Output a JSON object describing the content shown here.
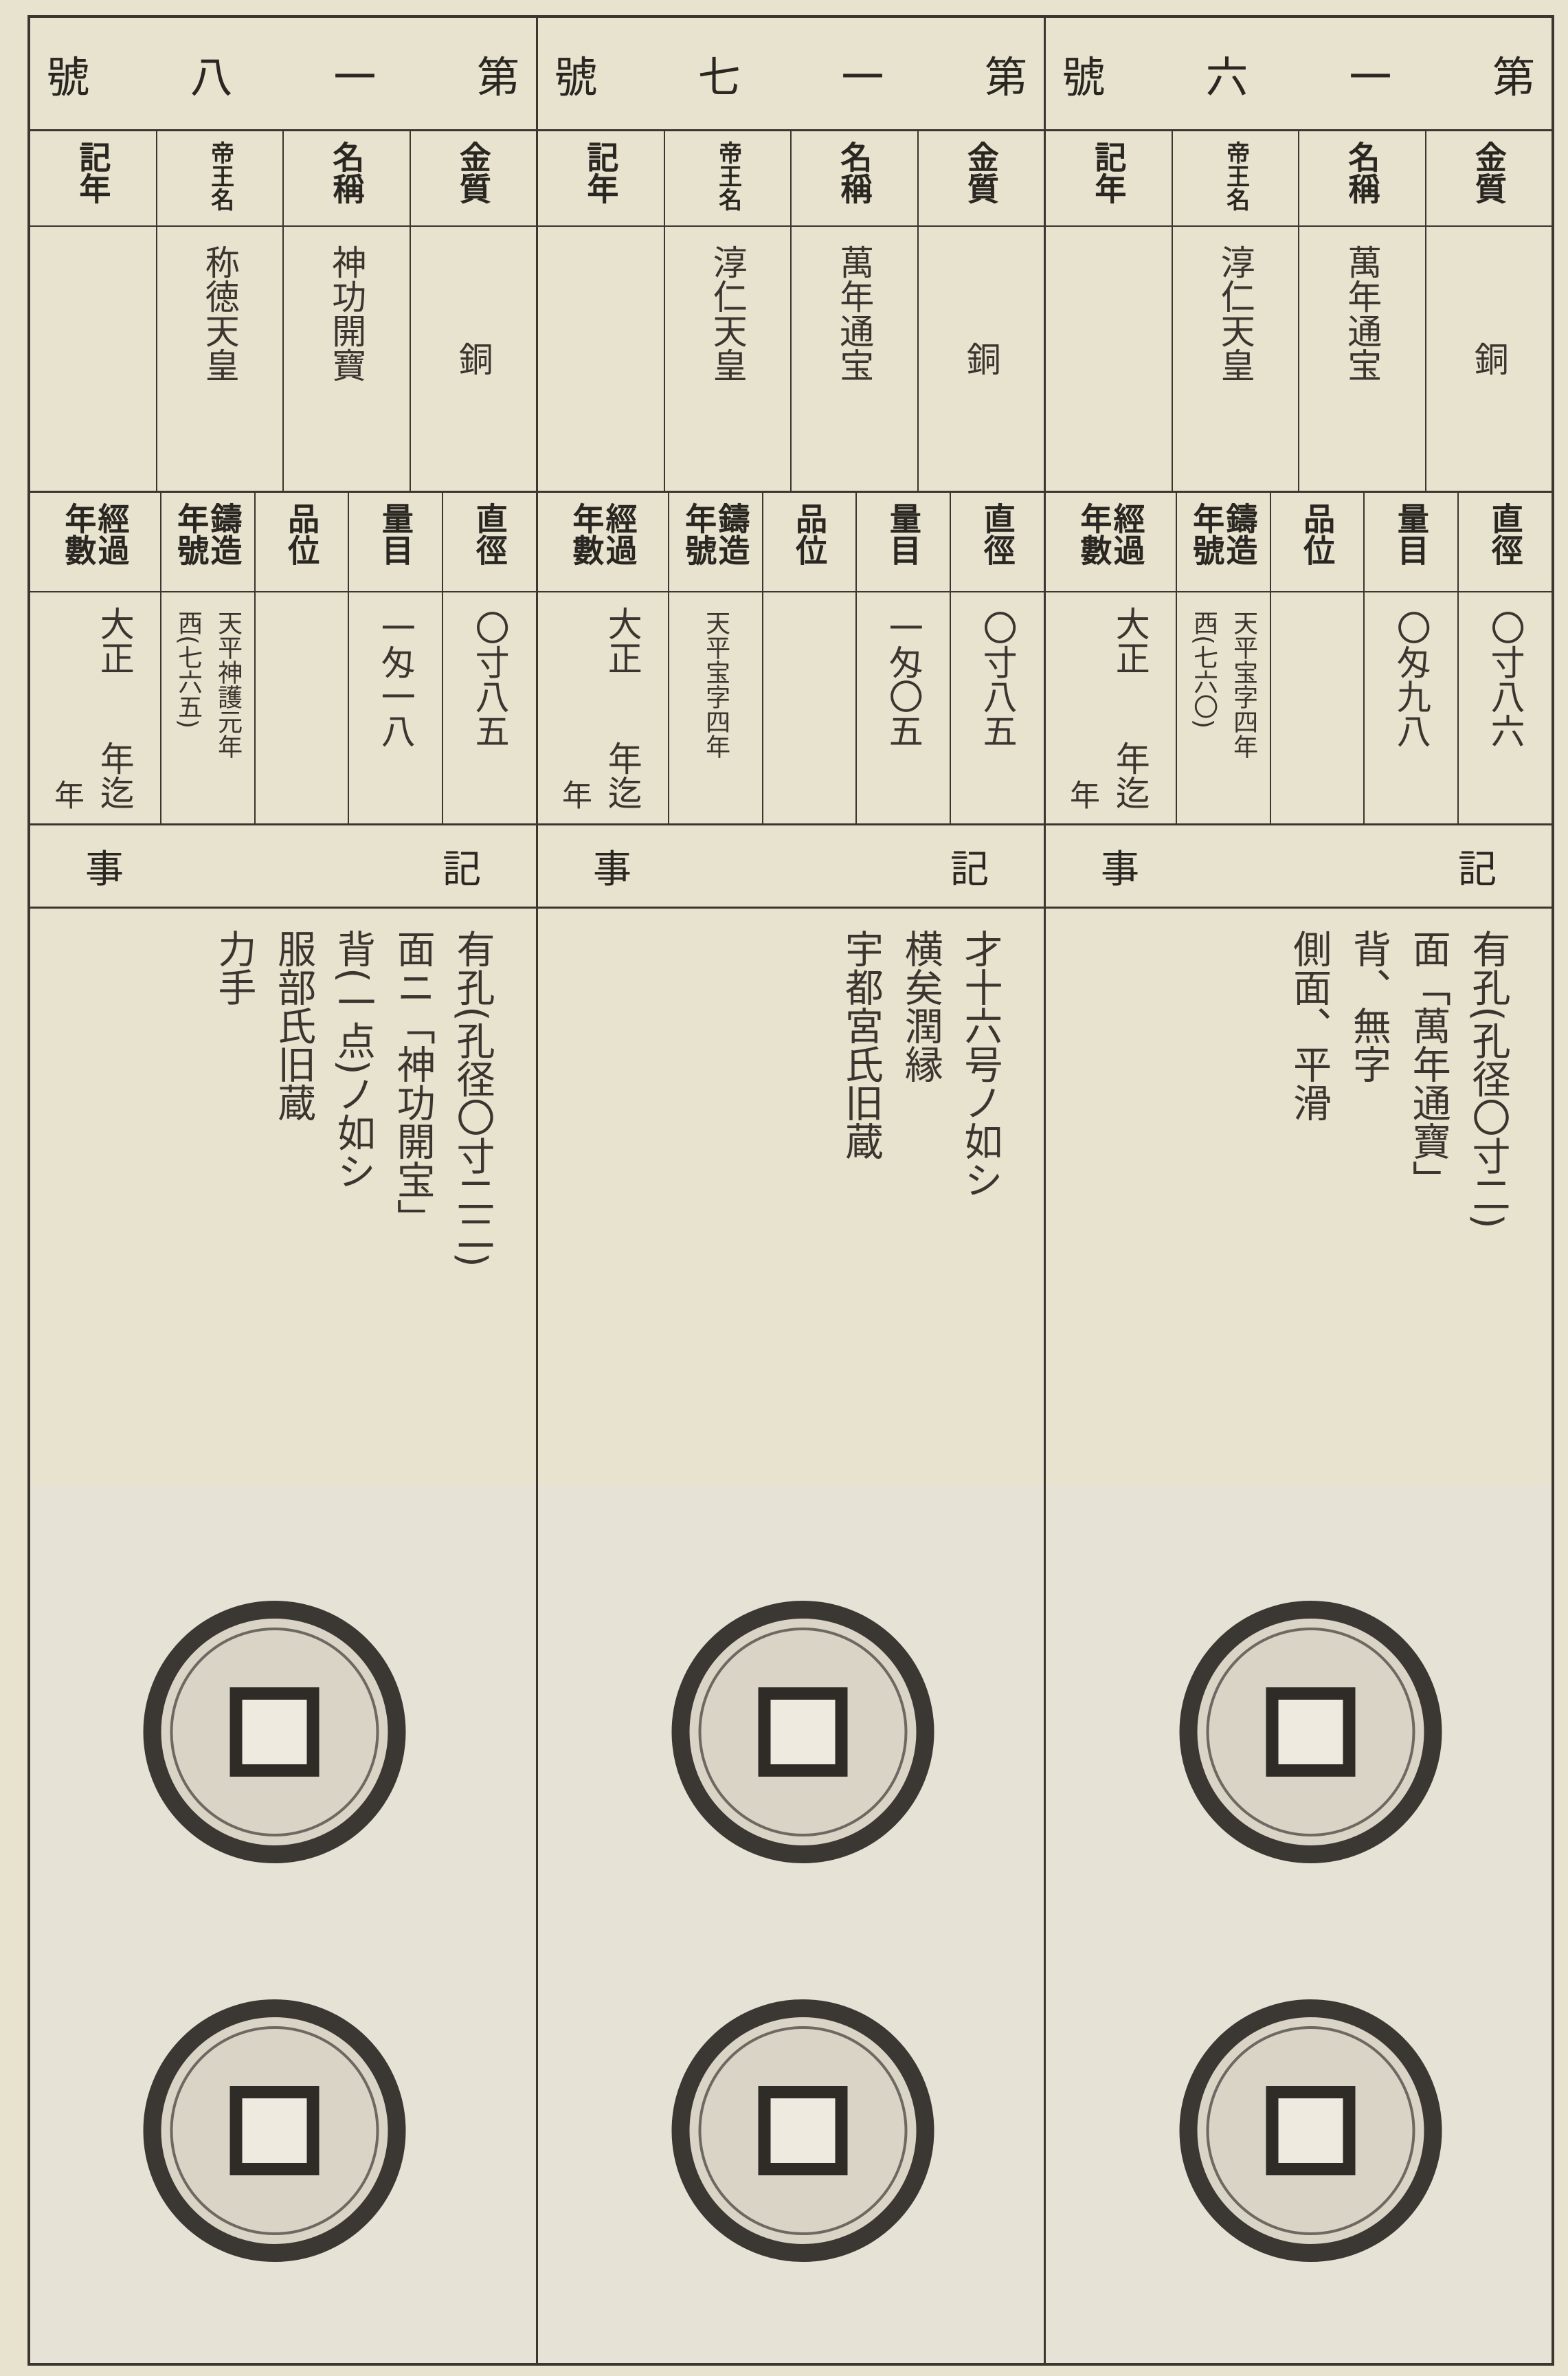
{
  "labels": {
    "material": "金質",
    "name": "名稱",
    "emperor": "帝王名",
    "era": "記年",
    "diameter": "直徑",
    "weight": "量目",
    "grade": "品位",
    "casting": "鑄造年號",
    "elapsed": "經過年數",
    "notes_title": [
      "事",
      "記"
    ],
    "elapsed_form": [
      "大正",
      "年迄",
      "年"
    ]
  },
  "columns": [
    {
      "heading": [
        "第",
        "一",
        "八",
        "號"
      ],
      "material": "銅",
      "name": "神功開寶",
      "emperor": "称徳天皇",
      "diameter": "〇寸八五",
      "weight": "一匁一八",
      "casting": [
        "天平神護元年",
        "西(七六五)"
      ],
      "notes": [
        "有孔(孔径〇寸二二)",
        "面ニ「神功開宝」",
        "背(一点)ノ如シ",
        "服部氏旧蔵",
        "力手"
      ]
    },
    {
      "heading": [
        "第",
        "一",
        "七",
        "號"
      ],
      "material": "銅",
      "name": "萬年通宝",
      "emperor": "淳仁天皇",
      "diameter": "〇寸八五",
      "weight": "一匁〇五",
      "casting": [
        "天平宝字四年"
      ],
      "notes": [
        "才十六号ノ如シ",
        "横矣潤縁",
        "宇都宮氏旧蔵"
      ]
    },
    {
      "heading": [
        "第",
        "一",
        "六",
        "號"
      ],
      "material": "銅",
      "name": "萬年通宝",
      "emperor": "淳仁天皇",
      "diameter": "〇寸八六",
      "weight": "〇匁九八",
      "casting": [
        "天平宝字四年",
        "西(七六〇)"
      ],
      "notes": [
        "有孔(孔径〇寸二)",
        "面「萬年通寶」",
        "背、無字",
        "側面、平滑"
      ]
    }
  ]
}
